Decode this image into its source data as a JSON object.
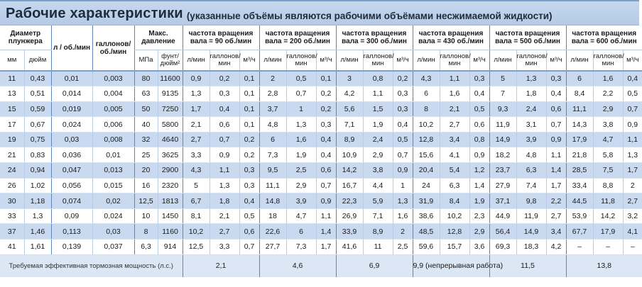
{
  "title": "Рабочие характеристики",
  "subtitle": "(указанные объёмы являются рабочими объёмами несжимаемой жидкости)",
  "header": {
    "diameter": "Диаметр плунжера",
    "l_per_rev": "л / об./мин",
    "gal_per_rev": "галлонов/ об./мин",
    "max_pressure": "Макс. давление",
    "speed_groups": [
      "частота вращения вала = 90 об./мин",
      "частота вращения вала = 200 об./мин",
      "частота вращения вала = 300 об./мин",
      "частота вращения вала = 430 об./мин",
      "частота вращения вала = 500 об./мин",
      "частота вращения вала = 600 об./мин"
    ]
  },
  "subheader": {
    "mm": "мм",
    "inch": "дюйм",
    "mpa": "МПа",
    "psi": "фунт/ дюйм²",
    "lmin": "л/мин",
    "galmin": "галлонов/ мин",
    "m3h": "м³/ч"
  },
  "rows": [
    [
      "11",
      "0,43",
      "0,01",
      "0,003",
      "80",
      "11600",
      "0,9",
      "0,2",
      "0,1",
      "2",
      "0,5",
      "0,1",
      "3",
      "0,8",
      "0,2",
      "4,3",
      "1,1",
      "0,3",
      "5",
      "1,3",
      "0,3",
      "6",
      "1,6",
      "0,4"
    ],
    [
      "13",
      "0,51",
      "0,014",
      "0,004",
      "63",
      "9135",
      "1,3",
      "0,3",
      "0,1",
      "2,8",
      "0,7",
      "0,2",
      "4,2",
      "1,1",
      "0,3",
      "6",
      "1,6",
      "0,4",
      "7",
      "1,8",
      "0,4",
      "8,4",
      "2,2",
      "0,5"
    ],
    [
      "15",
      "0,59",
      "0,019",
      "0,005",
      "50",
      "7250",
      "1,7",
      "0,4",
      "0,1",
      "3,7",
      "1",
      "0,2",
      "5,6",
      "1,5",
      "0,3",
      "8",
      "2,1",
      "0,5",
      "9,3",
      "2,4",
      "0,6",
      "11,1",
      "2,9",
      "0,7"
    ],
    [
      "17",
      "0,67",
      "0,024",
      "0,006",
      "40",
      "5800",
      "2,1",
      "0,6",
      "0,1",
      "4,8",
      "1,3",
      "0,3",
      "7,1",
      "1,9",
      "0,4",
      "10,2",
      "2,7",
      "0,6",
      "11,9",
      "3,1",
      "0,7",
      "14,3",
      "3,8",
      "0,9"
    ],
    [
      "19",
      "0,75",
      "0,03",
      "0,008",
      "32",
      "4640",
      "2,7",
      "0,7",
      "0,2",
      "6",
      "1,6",
      "0,4",
      "8,9",
      "2,4",
      "0,5",
      "12,8",
      "3,4",
      "0,8",
      "14,9",
      "3,9",
      "0,9",
      "17,9",
      "4,7",
      "1,1"
    ],
    [
      "21",
      "0,83",
      "0,036",
      "0,01",
      "25",
      "3625",
      "3,3",
      "0,9",
      "0,2",
      "7,3",
      "1,9",
      "0,4",
      "10,9",
      "2,9",
      "0,7",
      "15,6",
      "4,1",
      "0,9",
      "18,2",
      "4,8",
      "1,1",
      "21,8",
      "5,8",
      "1,3"
    ],
    [
      "24",
      "0,94",
      "0,047",
      "0,013",
      "20",
      "2900",
      "4,3",
      "1,1",
      "0,3",
      "9,5",
      "2,5",
      "0,6",
      "14,2",
      "3,8",
      "0,9",
      "20,4",
      "5,4",
      "1,2",
      "23,7",
      "6,3",
      "1,4",
      "28,5",
      "7,5",
      "1,7"
    ],
    [
      "26",
      "1,02",
      "0,056",
      "0,015",
      "16",
      "2320",
      "5",
      "1,3",
      "0,3",
      "11,1",
      "2,9",
      "0,7",
      "16,7",
      "4,4",
      "1",
      "24",
      "6,3",
      "1,4",
      "27,9",
      "7,4",
      "1,7",
      "33,4",
      "8,8",
      "2"
    ],
    [
      "30",
      "1,18",
      "0,074",
      "0,02",
      "12,5",
      "1813",
      "6,7",
      "1,8",
      "0,4",
      "14,8",
      "3,9",
      "0,9",
      "22,3",
      "5,9",
      "1,3",
      "31,9",
      "8,4",
      "1,9",
      "37,1",
      "9,8",
      "2,2",
      "44,5",
      "11,8",
      "2,7"
    ],
    [
      "33",
      "1,3",
      "0,09",
      "0,024",
      "10",
      "1450",
      "8,1",
      "2,1",
      "0,5",
      "18",
      "4,7",
      "1,1",
      "26,9",
      "7,1",
      "1,6",
      "38,6",
      "10,2",
      "2,3",
      "44,9",
      "11,9",
      "2,7",
      "53,9",
      "14,2",
      "3,2"
    ],
    [
      "37",
      "1,46",
      "0,113",
      "0,03",
      "8",
      "1160",
      "10,2",
      "2,7",
      "0,6",
      "22,6",
      "6",
      "1,4",
      "33,9",
      "8,9",
      "2",
      "48,5",
      "12,8",
      "2,9",
      "56,4",
      "14,9",
      "3,4",
      "67,7",
      "17,9",
      "4,1"
    ],
    [
      "41",
      "1,61",
      "0,139",
      "0,037",
      "6,3",
      "914",
      "12,5",
      "3,3",
      "0,7",
      "27,7",
      "7,3",
      "1,7",
      "41,6",
      "11",
      "2,5",
      "59,6",
      "15,7",
      "3,6",
      "69,3",
      "18,3",
      "4,2",
      "–",
      "–",
      "–"
    ]
  ],
  "footer": {
    "label": "Требуемая эффективная тормозная мощность (л.с.)",
    "values": [
      "2,1",
      "4,6",
      "6,9",
      "9,9 (непрерывная работа)",
      "11,5",
      "13,8"
    ]
  },
  "colors": {
    "title_bg": "#b4cae6",
    "row_shade": "#c9daf0",
    "footer_bg": "#dbe7f5",
    "group_border": "#5f86b8"
  }
}
